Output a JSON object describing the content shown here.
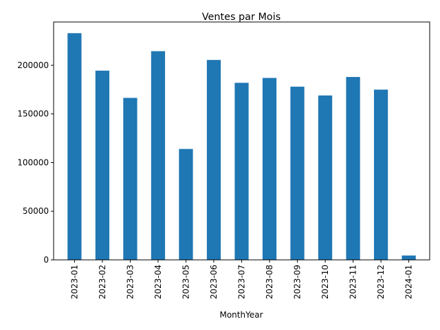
{
  "chart_data": {
    "type": "bar",
    "title": "Ventes par Mois",
    "xlabel": "MonthYear",
    "ylabel": "",
    "categories": [
      "2023-01",
      "2023-02",
      "2023-03",
      "2023-04",
      "2023-05",
      "2023-06",
      "2023-07",
      "2023-08",
      "2023-09",
      "2023-10",
      "2023-11",
      "2023-12",
      "2024-01"
    ],
    "values": [
      233000,
      194500,
      166500,
      214500,
      114000,
      205500,
      182000,
      187000,
      178000,
      169000,
      188000,
      175000,
      4500
    ],
    "yticks": [
      0,
      50000,
      100000,
      150000,
      200000
    ],
    "ylim": [
      0,
      244500
    ],
    "grid": false,
    "bar_color": "#1f77b4"
  }
}
